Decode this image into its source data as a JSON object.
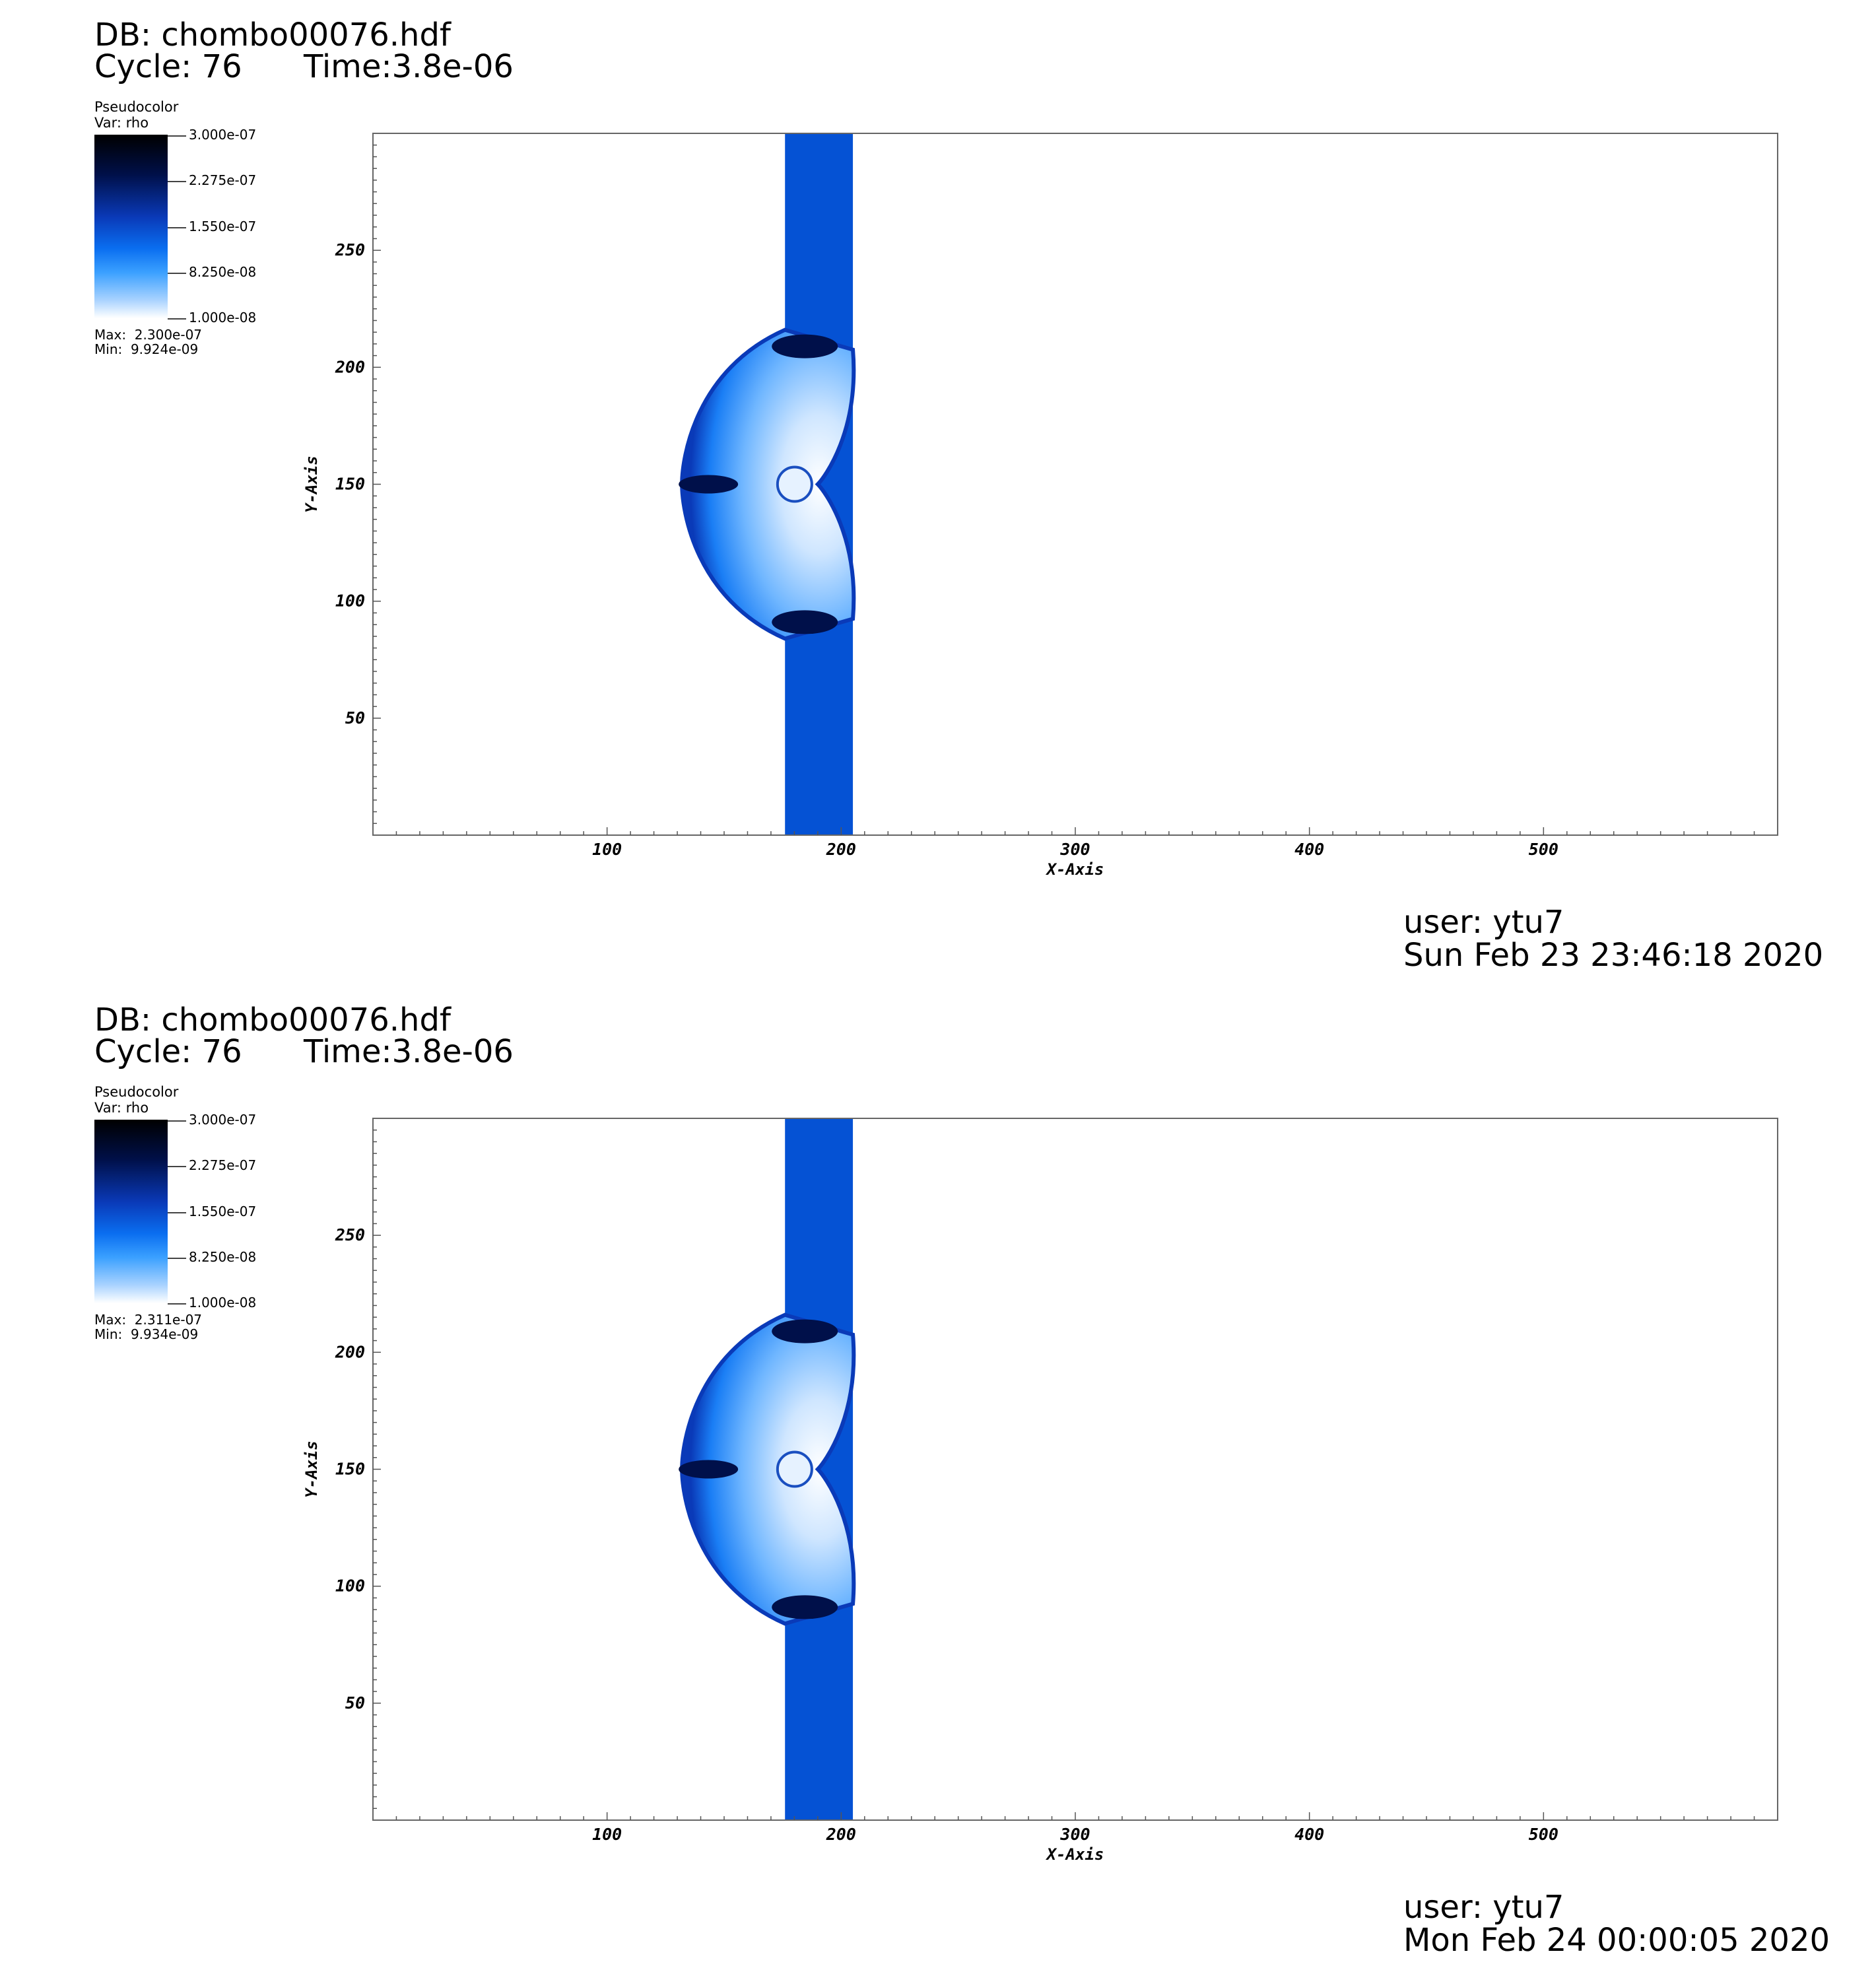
{
  "panels": [
    {
      "db_label": "DB: chombo00076.hdf",
      "cycle_label": "Cycle: 76",
      "time_label": "Time:3.8e-06",
      "legend": {
        "plot_type": "Pseudocolor",
        "var": "Var: rho",
        "ticks": [
          "3.000e-07",
          "2.275e-07",
          "1.550e-07",
          "8.250e-08",
          "1.000e-08"
        ],
        "max": "Max:  2.300e-07",
        "min": "Min:  9.924e-09"
      },
      "user": "user: ytu7",
      "date": "Sun Feb 23 23:46:18 2020"
    },
    {
      "db_label": "DB: chombo00076.hdf",
      "cycle_label": "Cycle: 76",
      "time_label": "Time:3.8e-06",
      "legend": {
        "plot_type": "Pseudocolor",
        "var": "Var: rho",
        "ticks": [
          "3.000e-07",
          "2.275e-07",
          "1.550e-07",
          "8.250e-08",
          "1.000e-08"
        ],
        "max": "Max:  2.311e-07",
        "min": "Min:  9.934e-09"
      },
      "user": "user: ytu7",
      "date": "Mon Feb 24 00:00:05 2020"
    }
  ],
  "chart_data": [
    {
      "type": "heatmap",
      "variable": "rho",
      "xlabel": "X-Axis",
      "ylabel": "Y-Axis",
      "xlim": [
        0,
        600
      ],
      "ylim": [
        0,
        300
      ],
      "xticks": [
        100,
        200,
        300,
        400,
        500
      ],
      "yticks": [
        50,
        100,
        150,
        200,
        250
      ],
      "colormap": [
        "#ffffff",
        "#3aa0ff",
        "#0a6ef0",
        "#00104a",
        "#000000"
      ],
      "color_range": [
        1e-08,
        3e-07
      ],
      "feature": {
        "band_x": [
          176,
          205
        ],
        "band_value": "#0552d4",
        "bubble_center": [
          190,
          150
        ],
        "bubble_left_x": 132,
        "bubble_y": [
          84,
          216
        ]
      }
    },
    {
      "type": "heatmap",
      "variable": "rho",
      "xlabel": "X-Axis",
      "ylabel": "Y-Axis",
      "xlim": [
        0,
        600
      ],
      "ylim": [
        0,
        300
      ],
      "xticks": [
        100,
        200,
        300,
        400,
        500
      ],
      "yticks": [
        50,
        100,
        150,
        200,
        250
      ],
      "colormap": [
        "#ffffff",
        "#3aa0ff",
        "#0a6ef0",
        "#00104a",
        "#000000"
      ],
      "color_range": [
        1e-08,
        3e-07
      ],
      "feature": {
        "band_x": [
          176,
          205
        ],
        "band_value": "#0552d4",
        "bubble_center": [
          190,
          150
        ],
        "bubble_left_x": 132,
        "bubble_y": [
          84,
          216
        ]
      }
    }
  ]
}
